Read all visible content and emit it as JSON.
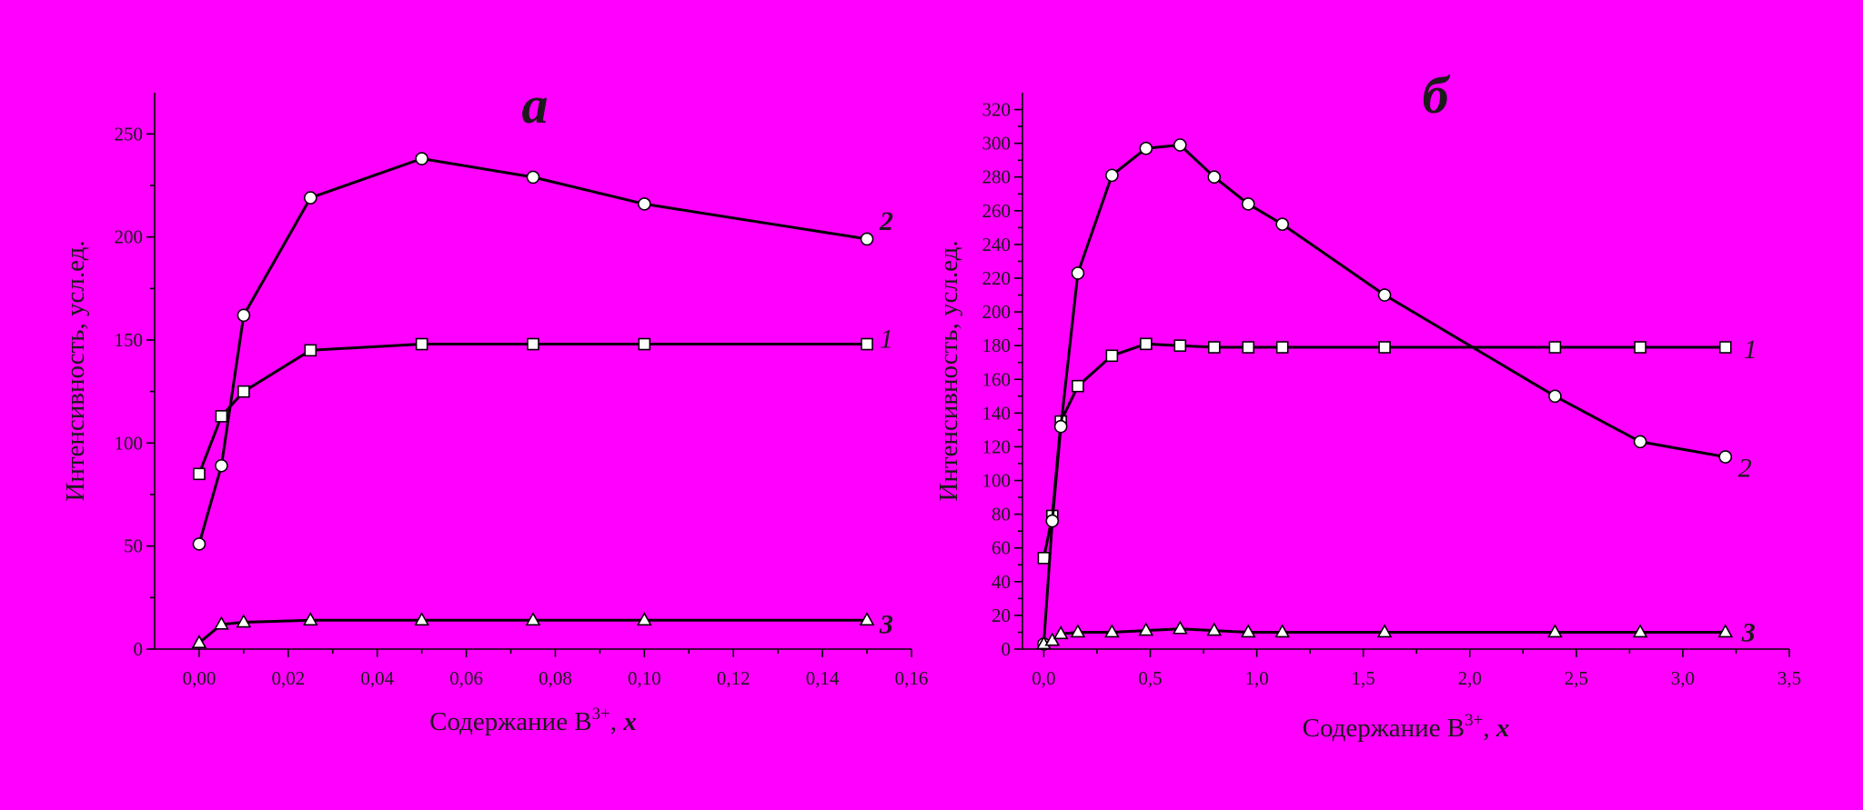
{
  "chart_data": [
    {
      "type": "line",
      "panel_label": "а",
      "xlabel": "Содержание B",
      "xlabel_sup": "3+",
      "xlabel_var": "x",
      "ylabel": "Интенсивность, усл.ед.",
      "xlim": [
        -0.01,
        0.16
      ],
      "ylim": [
        0,
        270
      ],
      "xticks": [
        "0,00",
        "0,02",
        "0,04",
        "0,06",
        "0,08",
        "0,10",
        "0,12",
        "0,14",
        "0,16"
      ],
      "xtick_values": [
        0,
        0.02,
        0.04,
        0.06,
        0.08,
        0.1,
        0.12,
        0.14,
        0.16
      ],
      "yticks": [
        "0",
        "50",
        "100",
        "150",
        "200",
        "250"
      ],
      "ytick_values": [
        0,
        50,
        100,
        150,
        200,
        250
      ],
      "series": [
        {
          "name": "1",
          "marker": "square",
          "x": [
            0,
            0.005,
            0.01,
            0.025,
            0.05,
            0.075,
            0.1,
            0.15
          ],
          "y": [
            85,
            113,
            125,
            145,
            148,
            148,
            148,
            148
          ]
        },
        {
          "name": "2",
          "marker": "circle",
          "x": [
            0,
            0.005,
            0.01,
            0.025,
            0.05,
            0.075,
            0.1,
            0.15
          ],
          "y": [
            51,
            89,
            162,
            219,
            238,
            229,
            216,
            199
          ]
        },
        {
          "name": "3",
          "marker": "triangle",
          "x": [
            0,
            0.005,
            0.01,
            0.025,
            0.05,
            0.075,
            0.1,
            0.15
          ],
          "y": [
            3,
            12,
            13,
            14,
            14,
            14,
            14,
            14
          ]
        }
      ],
      "curve_labels": [
        {
          "text": "2",
          "series": 1,
          "bold": true
        },
        {
          "text": "1",
          "series": 0,
          "bold": false
        },
        {
          "text": "3",
          "series": 2,
          "bold": true
        }
      ]
    },
    {
      "type": "line",
      "panel_label": "б",
      "xlabel": "Содержание B",
      "xlabel_sup": "3+",
      "xlabel_var": "x",
      "ylabel": "Интенсивность, усл.ед.",
      "xlim": [
        -0.1,
        3.5
      ],
      "ylim": [
        0,
        330
      ],
      "xticks": [
        "0,0",
        "0,5",
        "1,0",
        "1,5",
        "2,0",
        "2,5",
        "3,0",
        "3,5"
      ],
      "xtick_values": [
        0,
        0.5,
        1.0,
        1.5,
        2.0,
        2.5,
        3.0,
        3.5
      ],
      "yticks": [
        "0",
        "20",
        "40",
        "60",
        "80",
        "100",
        "120",
        "140",
        "160",
        "180",
        "200",
        "220",
        "240",
        "260",
        "280",
        "300",
        "320"
      ],
      "ytick_values": [
        0,
        20,
        40,
        60,
        80,
        100,
        120,
        140,
        160,
        180,
        200,
        220,
        240,
        260,
        280,
        300,
        320
      ],
      "series": [
        {
          "name": "1",
          "marker": "square",
          "x": [
            0,
            0.04,
            0.08,
            0.16,
            0.32,
            0.48,
            0.64,
            0.8,
            0.96,
            1.12,
            1.6,
            2.4,
            2.8,
            3.2
          ],
          "y": [
            54,
            79,
            135,
            156,
            174,
            181,
            180,
            179,
            179,
            179,
            179,
            179,
            179,
            179
          ]
        },
        {
          "name": "2",
          "marker": "circle",
          "x": [
            0,
            0.04,
            0.08,
            0.16,
            0.32,
            0.48,
            0.64,
            0.8,
            0.96,
            1.12,
            1.6,
            2.4,
            2.8,
            3.2
          ],
          "y": [
            3,
            76,
            132,
            223,
            281,
            297,
            299,
            280,
            264,
            252,
            210,
            150,
            123,
            114
          ]
        },
        {
          "name": "3",
          "marker": "triangle",
          "x": [
            0,
            0.04,
            0.08,
            0.16,
            0.32,
            0.48,
            0.64,
            0.8,
            0.96,
            1.12,
            1.6,
            2.4,
            2.8,
            3.2
          ],
          "y": [
            3,
            5,
            9,
            10,
            10,
            11,
            12,
            11,
            10,
            10,
            10,
            10,
            10,
            10
          ]
        }
      ],
      "curve_labels": [
        {
          "text": "1",
          "series": 0,
          "bold": false
        },
        {
          "text": "2",
          "series": 1,
          "bold": false
        },
        {
          "text": "3",
          "series": 2,
          "bold": true
        }
      ]
    }
  ]
}
